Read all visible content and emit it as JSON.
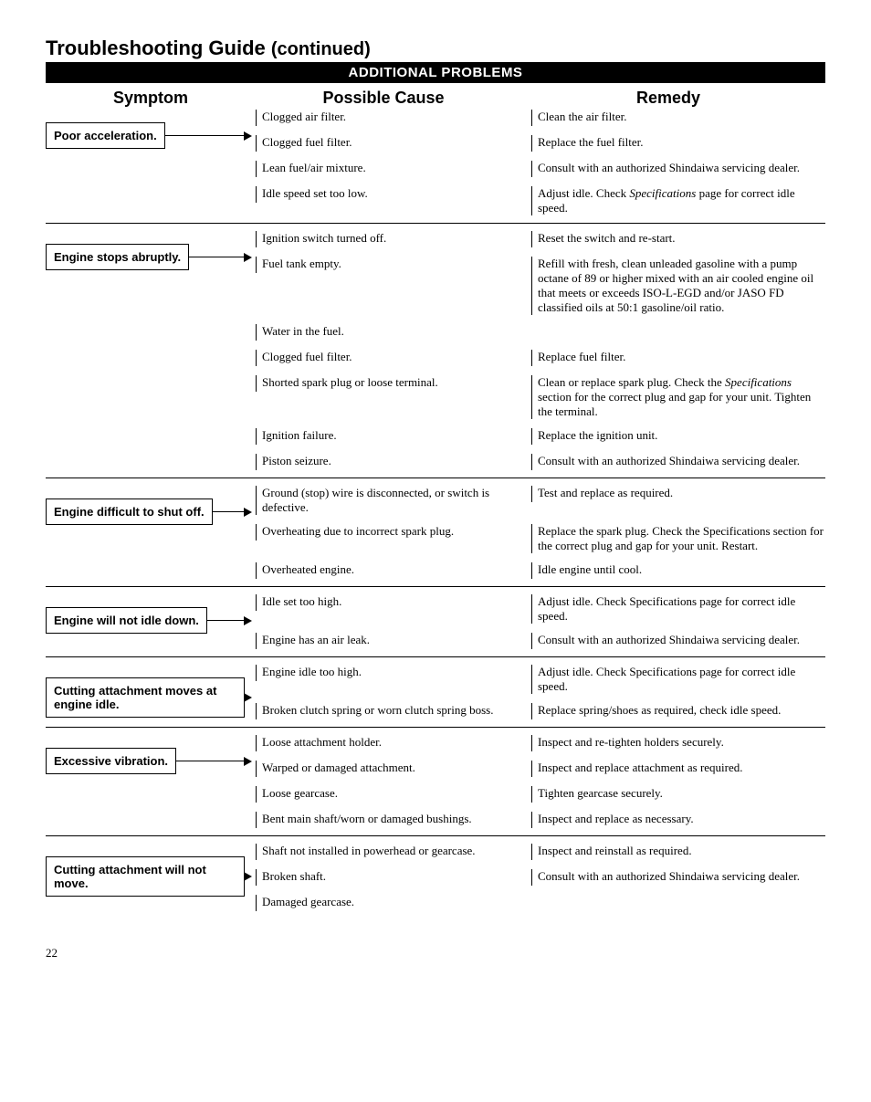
{
  "page": {
    "title_main": "Troubleshooting Guide",
    "title_cont": "(continued)",
    "section_header": "ADDITIONAL PROBLEMS",
    "col_symptom": "Symptom",
    "col_cause": "Possible Cause",
    "col_remedy": "Remedy",
    "page_number": "22"
  },
  "problems": [
    {
      "symptom": "Poor acceleration.",
      "rows": [
        {
          "cause": "Clogged air filter.",
          "remedy": "Clean the air filter."
        },
        {
          "cause": "Clogged fuel filter.",
          "remedy": "Replace the fuel filter."
        },
        {
          "cause": "Lean fuel/air mixture.",
          "remedy": "Consult with an authorized Shindaiwa servicing dealer."
        },
        {
          "cause": "Idle speed set too low.",
          "remedy": "Adjust idle. Check <i>Specifications</i> page for correct idle speed."
        }
      ]
    },
    {
      "symptom": "Engine stops abruptly.",
      "rows": [
        {
          "cause": "Ignition switch turned off.",
          "remedy": "Reset the switch and re-start."
        },
        {
          "cause": "Fuel tank empty.",
          "remedy": "Refill with fresh, clean unleaded gasoline with a pump octane of 89 or higher mixed with an air cooled engine oil that meets or exceeds ISO-L-EGD and/or JASO FD classified oils at 50:1 gasoline/oil ratio."
        },
        {
          "cause": "Water in the fuel.",
          "remedy": ""
        },
        {
          "cause": "Clogged fuel filter.",
          "remedy": "Replace fuel filter."
        },
        {
          "cause": "Shorted spark plug or loose terminal.",
          "remedy": "Clean or replace spark plug. Check the <i>Specifications</i> section for the correct plug and gap for your unit.  Tighten the terminal."
        },
        {
          "cause": "Ignition failure.",
          "remedy": "Replace the ignition unit."
        },
        {
          "cause": "Piston seizure.",
          "remedy": "Consult with an authorized Shindaiwa servicing dealer."
        }
      ]
    },
    {
      "symptom": "Engine difficult to shut off.",
      "rows": [
        {
          "cause": "Ground (stop) wire is disconnected, or switch is defective.",
          "remedy": "Test and replace as required."
        },
        {
          "cause": "Overheating due to incorrect spark plug.",
          "remedy": "Replace the spark plug. Check the Specifications section for the correct plug and gap for your unit. Restart."
        },
        {
          "cause": "Overheated engine.",
          "remedy": "Idle engine until cool."
        }
      ]
    },
    {
      "symptom": "Engine will not idle down.",
      "rows": [
        {
          "cause": "Idle set too high.",
          "remedy": "Adjust idle. Check Specifications page for correct idle speed."
        },
        {
          "cause": "Engine has an air leak.",
          "remedy": "Consult with an authorized Shindaiwa servicing dealer."
        }
      ]
    },
    {
      "symptom": "Cutting attachment moves at engine idle.",
      "rows": [
        {
          "cause": "Engine idle too high.",
          "remedy": "Adjust idle. Check Specifications page for correct idle speed."
        },
        {
          "cause": "Broken clutch spring or worn clutch spring boss.",
          "remedy": "Replace spring/shoes as required, check idle speed."
        }
      ]
    },
    {
      "symptom": "Excessive vibration.",
      "rows": [
        {
          "cause": "Loose attachment holder.",
          "remedy": "Inspect and re-tighten holders securely."
        },
        {
          "cause": "Warped or damaged attachment.",
          "remedy": "Inspect and replace attachment as required."
        },
        {
          "cause": "Loose gearcase.",
          "remedy": "Tighten gearcase securely."
        },
        {
          "cause": "Bent main shaft/worn or damaged bushings.",
          "remedy": "Inspect and replace as necessary."
        }
      ]
    },
    {
      "symptom": "Cutting attachment will not move.",
      "rows": [
        {
          "cause": "Shaft not installed in powerhead or gearcase.",
          "remedy": "Inspect and reinstall as required."
        },
        {
          "cause": "Broken shaft.",
          "remedy": "Consult with an authorized Shindaiwa servicing dealer."
        },
        {
          "cause": "Damaged gearcase.",
          "remedy": ""
        }
      ]
    }
  ]
}
